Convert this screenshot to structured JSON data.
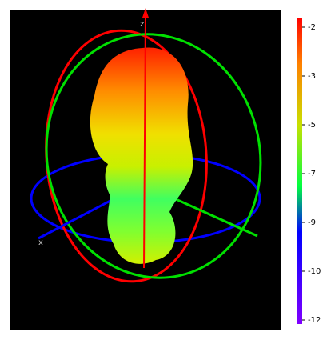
{
  "axes": {
    "z": "z",
    "x": "x"
  },
  "colorbar": {
    "ticks": [
      "-2",
      "-3",
      "-5",
      "-7",
      "-9",
      "-10",
      "-12"
    ]
  }
}
